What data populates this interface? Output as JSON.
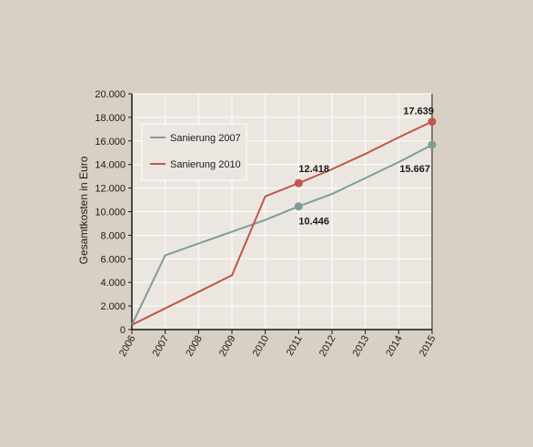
{
  "chart_data": {
    "type": "line",
    "title": "",
    "xlabel": "",
    "ylabel": "Gesamtkosten in Euro",
    "x": [
      2006,
      2007,
      2008,
      2009,
      2010,
      2011,
      2012,
      2013,
      2014,
      2015
    ],
    "xlim": [
      2006,
      2015
    ],
    "ylim": [
      0,
      20000
    ],
    "y_ticks": [
      0,
      2000,
      4000,
      6000,
      8000,
      10000,
      12000,
      14000,
      16000,
      18000,
      20000
    ],
    "y_tick_labels": [
      "0",
      "2.000",
      "4.000",
      "6.000",
      "8.000",
      "10.000",
      "12.000",
      "14.000",
      "16.000",
      "18.000",
      "20.000"
    ],
    "x_tick_labels": [
      "2006",
      "2007",
      "2008",
      "2009",
      "2010",
      "2011",
      "2012",
      "2013",
      "2014",
      "2015"
    ],
    "grid": true,
    "legend_position": "top-left",
    "series": [
      {
        "name": "Sanierung 2007",
        "color": "#7f9c99",
        "values": [
          400,
          6300,
          7300,
          8300,
          9300,
          10446,
          11500,
          12850,
          14200,
          15667
        ],
        "highlights": [
          {
            "x": 2011,
            "y": 10446,
            "label": "10.446",
            "label_position": "below-right"
          },
          {
            "x": 2015,
            "y": 15667,
            "label": "15.667",
            "label_position": "below-left"
          }
        ]
      },
      {
        "name": "Sanierung 2010",
        "color": "#c0574a",
        "values": [
          400,
          1800,
          3200,
          4600,
          11300,
          12418,
          13600,
          14900,
          16300,
          17639
        ],
        "highlights": [
          {
            "x": 2011,
            "y": 12418,
            "label": "12.418",
            "label_position": "above-right"
          },
          {
            "x": 2015,
            "y": 17639,
            "label": "17.639",
            "label_position": "above-left"
          }
        ]
      }
    ]
  }
}
